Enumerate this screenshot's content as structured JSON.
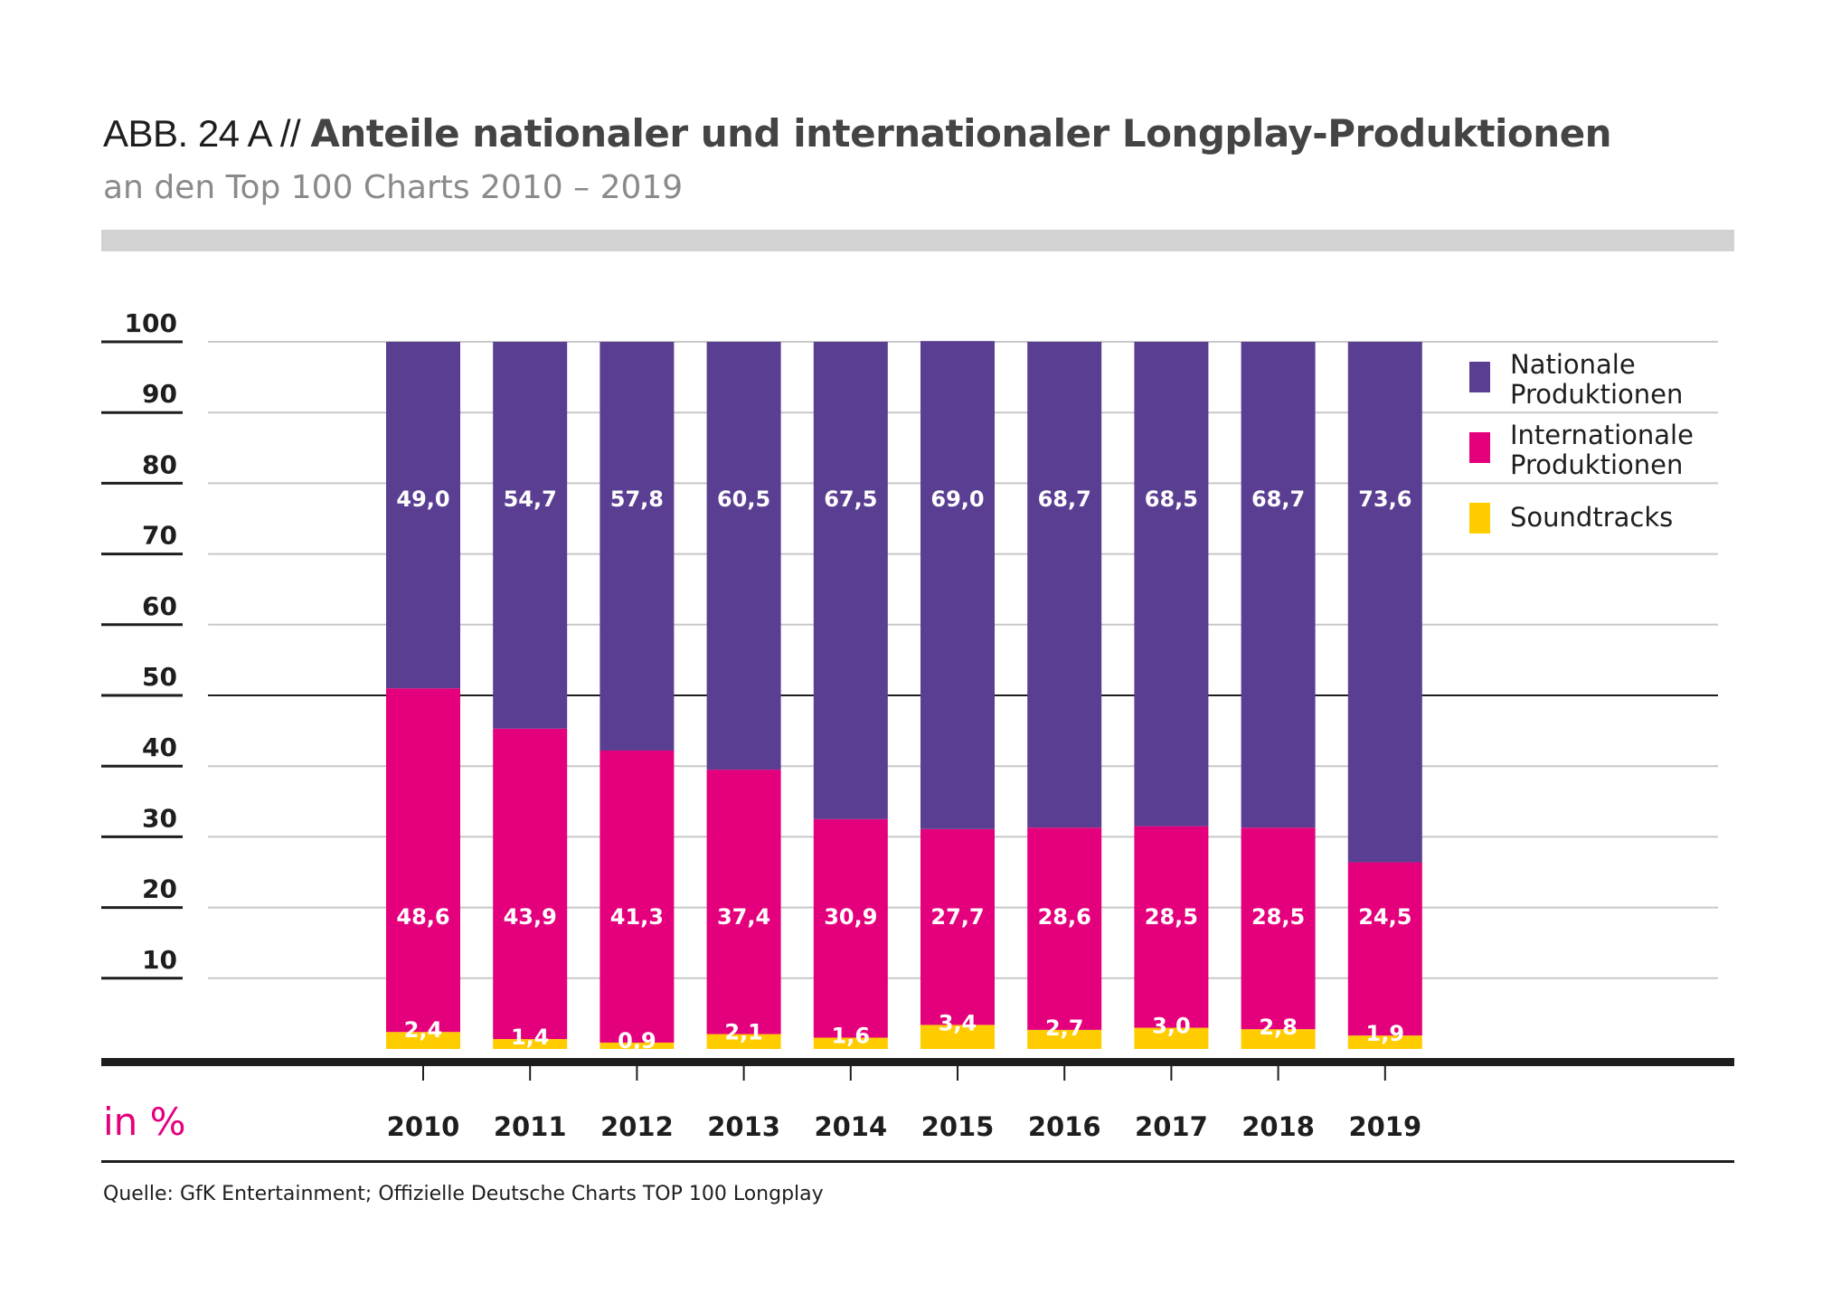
{
  "header": {
    "prefix": "ABB. 24 A // ",
    "title": "Anteile nationaler und internationaler Longplay-Produktionen",
    "subtitle": "an den Top 100 Charts 2010 – 2019"
  },
  "footer": {
    "source": "Quelle: GfK Entertainment; Offizielle Deutsche Charts TOP 100 Longplay"
  },
  "colors": {
    "national": "#5a3e92",
    "international": "#e4007d",
    "soundtracks": "#ffcc00",
    "unit_label": "#e4007d"
  },
  "chart_data": {
    "type": "bar",
    "stacked": true,
    "title": "Anteile nationaler und internationaler Longplay-Produktionen",
    "subtitle": "an den Top 100 Charts 2010 – 2019",
    "xlabel": "",
    "ylabel": "in %",
    "ylim": [
      0,
      100
    ],
    "yticks": [
      10,
      20,
      30,
      40,
      50,
      60,
      70,
      80,
      90,
      100
    ],
    "ytick_labels": [
      "10",
      "20",
      "30",
      "40",
      "50",
      "60",
      "70",
      "80",
      "90",
      "100"
    ],
    "grid": true,
    "legend_position": "right",
    "categories": [
      "2010",
      "2011",
      "2012",
      "2013",
      "2014",
      "2015",
      "2016",
      "2017",
      "2018",
      "2019"
    ],
    "series": [
      {
        "name": "Soundtracks",
        "color": "#ffcc00",
        "values": [
          2.4,
          1.4,
          0.9,
          2.1,
          1.6,
          3.4,
          2.7,
          3.0,
          2.8,
          1.9
        ],
        "labels": [
          "2,4",
          "1,4",
          "0,9",
          "2,1",
          "1,6",
          "3,4",
          "2,7",
          "3,0",
          "2,8",
          "1,9"
        ]
      },
      {
        "name": "Internationale Produktionen",
        "color": "#e4007d",
        "values": [
          48.6,
          43.9,
          41.3,
          37.4,
          30.9,
          27.7,
          28.6,
          28.5,
          28.5,
          24.5
        ],
        "labels": [
          "48,6",
          "43,9",
          "41,3",
          "37,4",
          "30,9",
          "27,7",
          "28,6",
          "28,5",
          "28,5",
          "24,5"
        ]
      },
      {
        "name": "Nationale Produktionen",
        "color": "#5a3e92",
        "values": [
          49.0,
          54.7,
          57.8,
          60.5,
          67.5,
          69.0,
          68.7,
          68.5,
          68.7,
          73.6
        ],
        "labels": [
          "49,0",
          "54,7",
          "57,8",
          "60,5",
          "67,5",
          "69,0",
          "68,7",
          "68,5",
          "68,7",
          "73,6"
        ]
      }
    ],
    "legend": [
      {
        "lines": [
          "Nationale",
          "Produktionen"
        ],
        "color": "#5a3e92"
      },
      {
        "lines": [
          "Internationale",
          "Produktionen"
        ],
        "color": "#e4007d"
      },
      {
        "lines": [
          "Soundtracks"
        ],
        "color": "#ffcc00"
      }
    ],
    "unit_label": "in %"
  }
}
